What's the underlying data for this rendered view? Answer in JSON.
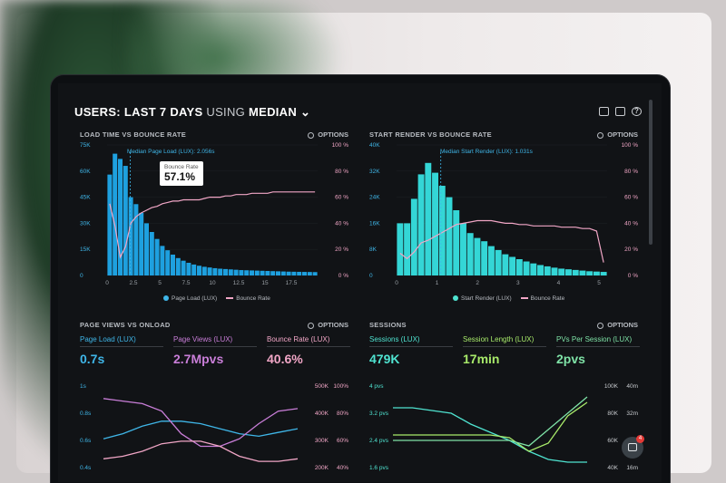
{
  "header": {
    "prefix": "USERS:",
    "range": "LAST 7 DAYS",
    "using": "USING",
    "stat": "MEDIAN",
    "dropdown": "⌄"
  },
  "panels": {
    "load_time": {
      "title": "LOAD TIME VS BOUNCE RATE",
      "options": "OPTIONS",
      "annotation": "Median Page Load (LUX): 2.056s",
      "tooltip_label": "Bounce Rate",
      "tooltip_value": "57.1%",
      "legend": [
        "Page Load (LUX)",
        "Bounce Rate"
      ]
    },
    "start_render": {
      "title": "START RENDER VS BOUNCE RATE",
      "options": "OPTIONS",
      "annotation": "Median Start Render (LUX): 1.031s",
      "legend": [
        "Start Render (LUX)",
        "Bounce Rate"
      ]
    },
    "page_views": {
      "title": "PAGE VIEWS VS ONLOAD",
      "options": "OPTIONS",
      "metrics": [
        {
          "label": "Page Load (LUX)",
          "value": "0.7s",
          "color": "#3fb6e8"
        },
        {
          "label": "Page Views (LUX)",
          "value": "2.7Mpvs",
          "color": "#c97ed8"
        },
        {
          "label": "Bounce Rate (LUX)",
          "value": "40.6%",
          "color": "#f1a6c6"
        }
      ]
    },
    "sessions": {
      "title": "SESSIONS",
      "options": "OPTIONS",
      "metrics": [
        {
          "label": "Sessions (LUX)",
          "value": "479K",
          "color": "#4fe3d0"
        },
        {
          "label": "Session Length (LUX)",
          "value": "17min",
          "color": "#a8ea6a"
        },
        {
          "label": "PVs Per Session (LUX)",
          "value": "2pvs",
          "color": "#7fe3a7"
        }
      ]
    }
  },
  "home_badge": "4",
  "chart_data": [
    {
      "type": "bar",
      "title": "LOAD TIME VS BOUNCE RATE",
      "y_left_ticks": [
        "75K",
        "60K",
        "45K",
        "30K",
        "15K",
        "0"
      ],
      "y_right_ticks": [
        "100 %",
        "80 %",
        "60 %",
        "40 %",
        "20 %",
        "0 %"
      ],
      "x_ticks": [
        "0",
        "2.5",
        "5",
        "7.5",
        "10",
        "12.5",
        "15",
        "17.5"
      ],
      "ylim": [
        0,
        75000
      ],
      "xlim": [
        0,
        20
      ],
      "bars": [
        58000,
        70000,
        67000,
        63000,
        45000,
        41000,
        36000,
        30000,
        25000,
        21000,
        17000,
        14500,
        12000,
        10000,
        8500,
        7300,
        6300,
        5600,
        5000,
        4600,
        4200,
        3900,
        3700,
        3500,
        3300,
        3100,
        3000,
        2900,
        2800,
        2700,
        2600,
        2500,
        2400,
        2300,
        2200,
        2150,
        2100,
        2050,
        2000,
        1950
      ],
      "bounce_rate_pct": [
        55,
        38,
        14,
        22,
        40,
        45,
        48,
        50,
        52,
        53,
        55,
        56,
        57,
        57,
        58,
        58,
        58,
        58,
        59,
        60,
        60,
        60,
        61,
        61,
        62,
        62,
        62,
        63,
        63,
        63,
        63,
        64,
        64,
        64,
        64,
        64,
        64,
        64,
        64,
        64
      ]
    },
    {
      "type": "bar",
      "title": "START RENDER VS BOUNCE RATE",
      "y_left_ticks": [
        "40K",
        "32K",
        "24K",
        "16K",
        "8K",
        "0"
      ],
      "y_right_ticks": [
        "100 %",
        "80 %",
        "60 %",
        "40 %",
        "20 %",
        "0 %"
      ],
      "x_ticks": [
        "0",
        "1",
        "2",
        "3",
        "4",
        "5"
      ],
      "ylim": [
        0,
        40000
      ],
      "xlim": [
        0,
        5.2
      ],
      "bars": [
        16000,
        16000,
        23500,
        31000,
        34500,
        31500,
        27500,
        24000,
        20000,
        16000,
        13000,
        11500,
        10500,
        9000,
        7800,
        6500,
        5700,
        5000,
        4300,
        3700,
        3200,
        2800,
        2400,
        2100,
        1900,
        1700,
        1500,
        1300,
        1200,
        1100
      ],
      "bounce_rate_pct": [
        17,
        13,
        18,
        25,
        27,
        30,
        33,
        36,
        39,
        40,
        41,
        42,
        42,
        42,
        41,
        40,
        40,
        39,
        39,
        38,
        38,
        38,
        38,
        37,
        37,
        37,
        36,
        36,
        34,
        10
      ]
    },
    {
      "type": "line",
      "title": "PAGE VIEWS VS ONLOAD",
      "y_left_ticks": [
        "1s",
        "0.8s",
        "0.6s",
        "0.4s"
      ],
      "y_mid_ticks": [
        "500K",
        "400K",
        "300K",
        "200K"
      ],
      "y_right_ticks": [
        "100%",
        "80%",
        "60%",
        "40%"
      ],
      "series": [
        {
          "name": "Page Load (LUX)",
          "color": "#3fb6e8",
          "values": [
            0.58,
            0.62,
            0.68,
            0.72,
            0.72,
            0.7,
            0.66,
            0.62,
            0.6,
            0.63,
            0.66
          ]
        },
        {
          "name": "Page Views (LUX)",
          "color": "#c97ed8",
          "values": [
            0.9,
            0.88,
            0.86,
            0.8,
            0.62,
            0.52,
            0.52,
            0.58,
            0.7,
            0.8,
            0.82
          ]
        },
        {
          "name": "Bounce Rate (LUX)",
          "color": "#f1a6c6",
          "values": [
            0.42,
            0.44,
            0.48,
            0.54,
            0.56,
            0.56,
            0.52,
            0.44,
            0.4,
            0.4,
            0.42
          ]
        }
      ]
    },
    {
      "type": "line",
      "title": "SESSIONS",
      "y_left_ticks": [
        "4 pvs",
        "3.2 pvs",
        "2.4 pvs",
        "1.6 pvs"
      ],
      "y_mid_ticks": [
        "100K",
        "80K",
        "60K",
        "40K"
      ],
      "y_right_ticks": [
        "40m",
        "32m",
        "24m",
        "16m"
      ],
      "series": [
        {
          "name": "Sessions (LUX)",
          "color": "#4fe3d0",
          "values": [
            3.2,
            3.2,
            3.1,
            3.0,
            2.6,
            2.3,
            2.0,
            1.6,
            1.3,
            1.2,
            1.2
          ]
        },
        {
          "name": "Session Length (LUX)",
          "color": "#a8ea6a",
          "values": [
            2.2,
            2.2,
            2.2,
            2.2,
            2.2,
            2.2,
            2.1,
            1.6,
            1.9,
            2.9,
            3.4
          ]
        },
        {
          "name": "PVs Per Session (LUX)",
          "color": "#7fe3a7",
          "values": [
            2.0,
            2.0,
            2.0,
            2.0,
            2.0,
            2.0,
            2.0,
            1.8,
            2.4,
            3.0,
            3.6
          ]
        }
      ]
    }
  ]
}
